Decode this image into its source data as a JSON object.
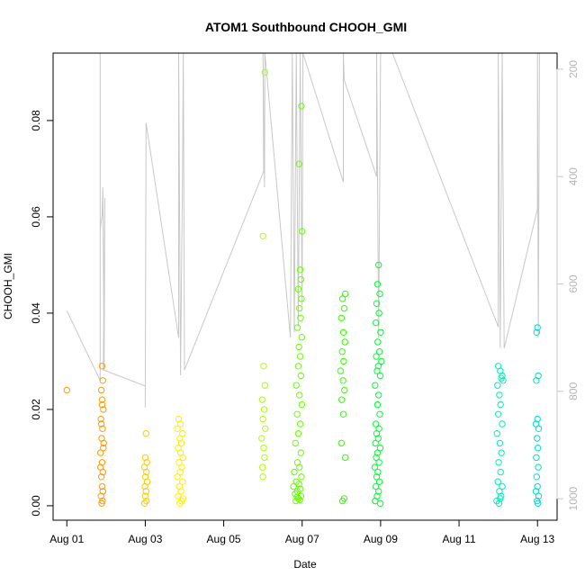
{
  "chart_data": {
    "type": "scatter",
    "title": "ATOM1 Southbound CHOOH_GMI",
    "xlabel": "Date",
    "ylabel": "CHOOH_GMI",
    "x_ticks": [
      "Aug 01",
      "Aug 03",
      "Aug 05",
      "Aug 07",
      "Aug 09",
      "Aug 11",
      "Aug 13"
    ],
    "x_tick_days": [
      1,
      3,
      5,
      7,
      9,
      11,
      13
    ],
    "xlim_days": [
      0.65,
      13.5
    ],
    "ylim": [
      -0.003,
      0.094
    ],
    "y_ticks": [
      0.0,
      0.02,
      0.04,
      0.06,
      0.08
    ],
    "y_tick_labels": [
      "0.00",
      "0.02",
      "0.04",
      "0.06",
      "0.08"
    ],
    "secondary_axis": {
      "label": "",
      "reversed": true,
      "ticks": [
        200,
        400,
        600,
        800,
        1000
      ],
      "ylim": [
        1040,
        170
      ],
      "color": "#c8c8c8"
    },
    "series": [
      {
        "color": "#ff9900",
        "points": [
          [
            1.0,
            0.024
          ],
          [
            1.9,
            0.029
          ],
          [
            1.92,
            0.026
          ],
          [
            1.88,
            0.024
          ],
          [
            1.9,
            0.022
          ],
          [
            1.93,
            0.02
          ],
          [
            1.87,
            0.018
          ],
          [
            1.91,
            0.016
          ],
          [
            1.89,
            0.014
          ],
          [
            1.93,
            0.012
          ],
          [
            1.86,
            0.011
          ],
          [
            1.9,
            0.009
          ],
          [
            1.92,
            0.007
          ],
          [
            1.88,
            0.006
          ],
          [
            1.9,
            0.004
          ],
          [
            1.87,
            0.002
          ],
          [
            1.91,
            0.001
          ],
          [
            1.89,
            0.0005
          ],
          [
            1.92,
            0.003
          ],
          [
            1.86,
            0.008
          ],
          [
            1.94,
            0.013
          ],
          [
            1.88,
            0.017
          ],
          [
            1.9,
            0.021
          ]
        ]
      },
      {
        "color": "#ffcc00",
        "points": [
          [
            3.02,
            0.015
          ],
          [
            3.0,
            0.01
          ],
          [
            3.04,
            0.009
          ],
          [
            2.98,
            0.008
          ],
          [
            3.03,
            0.007
          ],
          [
            3.0,
            0.006
          ],
          [
            3.05,
            0.005
          ],
          [
            2.99,
            0.004
          ],
          [
            3.02,
            0.003
          ],
          [
            3.0,
            0.002
          ],
          [
            3.03,
            0.001
          ],
          [
            2.98,
            0.0005
          ]
        ]
      },
      {
        "color": "#ffee00",
        "points": [
          [
            3.85,
            0.018
          ],
          [
            3.9,
            0.017
          ],
          [
            3.82,
            0.016
          ],
          [
            3.95,
            0.015
          ],
          [
            3.88,
            0.014
          ],
          [
            3.92,
            0.013
          ],
          [
            3.84,
            0.012
          ],
          [
            3.9,
            0.011
          ],
          [
            3.96,
            0.01
          ],
          [
            3.86,
            0.009
          ],
          [
            3.93,
            0.008
          ],
          [
            3.89,
            0.007
          ],
          [
            3.82,
            0.006
          ],
          [
            3.95,
            0.005
          ],
          [
            3.87,
            0.004
          ],
          [
            3.91,
            0.003
          ],
          [
            3.84,
            0.002
          ],
          [
            3.93,
            0.001
          ],
          [
            3.88,
            0.0005
          ],
          [
            3.96,
            0.0015
          ]
        ]
      },
      {
        "color": "#aaff00",
        "points": [
          [
            6.05,
            0.09
          ],
          [
            6.0,
            0.056
          ],
          [
            6.02,
            0.029
          ],
          [
            6.05,
            0.025
          ],
          [
            5.98,
            0.022
          ],
          [
            6.03,
            0.02
          ],
          [
            6.0,
            0.018
          ],
          [
            6.06,
            0.016
          ],
          [
            5.97,
            0.014
          ],
          [
            6.02,
            0.012
          ],
          [
            6.04,
            0.01
          ],
          [
            5.99,
            0.008
          ],
          [
            6.0,
            0.006
          ]
        ]
      },
      {
        "color": "#66ff00",
        "points": [
          [
            6.98,
            0.083
          ],
          [
            6.92,
            0.071
          ],
          [
            7.0,
            0.057
          ],
          [
            6.95,
            0.049
          ],
          [
            6.97,
            0.047
          ],
          [
            6.9,
            0.045
          ],
          [
            6.98,
            0.043
          ],
          [
            6.93,
            0.041
          ],
          [
            6.96,
            0.039
          ],
          [
            6.88,
            0.037
          ],
          [
            6.99,
            0.035
          ],
          [
            6.92,
            0.033
          ],
          [
            6.95,
            0.031
          ],
          [
            6.9,
            0.029
          ],
          [
            6.97,
            0.027
          ],
          [
            6.85,
            0.025
          ],
          [
            6.93,
            0.023
          ],
          [
            6.99,
            0.021
          ],
          [
            6.87,
            0.019
          ],
          [
            6.95,
            0.017
          ],
          [
            6.9,
            0.015
          ],
          [
            6.83,
            0.013
          ],
          [
            6.97,
            0.011
          ],
          [
            6.88,
            0.009
          ],
          [
            6.93,
            0.008
          ],
          [
            6.8,
            0.007
          ],
          [
            6.98,
            0.006
          ],
          [
            6.85,
            0.005
          ],
          [
            6.92,
            0.0045
          ],
          [
            6.78,
            0.004
          ],
          [
            6.95,
            0.0035
          ],
          [
            6.88,
            0.003
          ],
          [
            6.82,
            0.0025
          ],
          [
            6.97,
            0.002
          ],
          [
            6.9,
            0.0015
          ],
          [
            6.84,
            0.001
          ],
          [
            6.94,
            0.0012
          ],
          [
            6.87,
            0.0018
          ]
        ]
      },
      {
        "color": "#33ff00",
        "points": [
          [
            8.1,
            0.044
          ],
          [
            8.03,
            0.043
          ],
          [
            8.07,
            0.041
          ],
          [
            8.0,
            0.039
          ],
          [
            8.05,
            0.036
          ],
          [
            8.09,
            0.034
          ],
          [
            8.02,
            0.032
          ],
          [
            8.06,
            0.03
          ],
          [
            7.98,
            0.028
          ],
          [
            8.04,
            0.026
          ],
          [
            8.08,
            0.024
          ],
          [
            8.01,
            0.022
          ],
          [
            8.05,
            0.019
          ],
          [
            8.0,
            0.013
          ],
          [
            8.1,
            0.01
          ],
          [
            8.03,
            0.001
          ],
          [
            8.07,
            0.0015
          ]
        ]
      },
      {
        "color": "#00ff33",
        "points": [
          [
            8.95,
            0.05
          ],
          [
            8.92,
            0.046
          ],
          [
            8.98,
            0.044
          ],
          [
            8.9,
            0.042
          ],
          [
            8.96,
            0.04
          ],
          [
            8.88,
            0.038
          ],
          [
            9.0,
            0.036
          ],
          [
            8.93,
            0.034
          ],
          [
            8.97,
            0.032
          ],
          [
            8.89,
            0.031
          ],
          [
            9.02,
            0.03
          ],
          [
            8.94,
            0.029
          ],
          [
            8.91,
            0.028
          ],
          [
            8.99,
            0.027
          ],
          [
            8.86,
            0.025
          ],
          [
            8.95,
            0.023
          ],
          [
            8.92,
            0.021
          ],
          [
            8.98,
            0.019
          ],
          [
            8.88,
            0.017
          ],
          [
            8.96,
            0.016
          ],
          [
            8.9,
            0.015
          ],
          [
            8.94,
            0.014
          ],
          [
            8.87,
            0.013
          ],
          [
            8.99,
            0.012
          ],
          [
            8.92,
            0.011
          ],
          [
            8.89,
            0.01
          ],
          [
            8.96,
            0.009
          ],
          [
            8.85,
            0.008
          ],
          [
            8.93,
            0.007
          ],
          [
            8.9,
            0.006
          ],
          [
            8.97,
            0.005
          ],
          [
            8.88,
            0.004
          ],
          [
            8.95,
            0.003
          ],
          [
            8.91,
            0.002
          ],
          [
            8.86,
            0.001
          ],
          [
            8.99,
            0.0005
          ]
        ]
      },
      {
        "color": "#00eebb",
        "points": [
          [
            12.0,
            0.029
          ],
          [
            12.05,
            0.028
          ],
          [
            12.1,
            0.027
          ],
          [
            12.08,
            0.0265
          ],
          [
            12.12,
            0.026
          ],
          [
            11.98,
            0.025
          ],
          [
            12.03,
            0.023
          ],
          [
            12.06,
            0.021
          ],
          [
            12.0,
            0.019
          ],
          [
            12.1,
            0.017
          ],
          [
            11.97,
            0.015
          ],
          [
            12.04,
            0.013
          ],
          [
            12.08,
            0.011
          ],
          [
            12.01,
            0.009
          ],
          [
            12.06,
            0.007
          ],
          [
            11.99,
            0.005
          ],
          [
            12.1,
            0.004
          ],
          [
            12.03,
            0.003
          ],
          [
            12.07,
            0.002
          ],
          [
            11.96,
            0.001
          ],
          [
            12.02,
            0.0005
          ],
          [
            12.05,
            0.0015
          ]
        ]
      },
      {
        "color": "#00ddcc",
        "points": [
          [
            13.0,
            0.037
          ],
          [
            12.98,
            0.036
          ],
          [
            13.02,
            0.027
          ],
          [
            12.97,
            0.026
          ],
          [
            13.0,
            0.018
          ],
          [
            12.96,
            0.017
          ],
          [
            13.03,
            0.016
          ],
          [
            12.99,
            0.014
          ],
          [
            13.01,
            0.012
          ],
          [
            12.97,
            0.01
          ],
          [
            13.02,
            0.008
          ],
          [
            12.98,
            0.006
          ],
          [
            13.0,
            0.004
          ],
          [
            12.96,
            0.003
          ],
          [
            13.03,
            0.002
          ],
          [
            12.99,
            0.001
          ],
          [
            13.01,
            0.0005
          ]
        ]
      }
    ],
    "secondary_line": {
      "color": "#c8c8c8",
      "points": [
        [
          1.0,
          650
        ],
        [
          1.85,
          780
        ],
        [
          1.85,
          170
        ],
        [
          1.85,
          500
        ],
        [
          1.9,
          470
        ],
        [
          1.92,
          420
        ],
        [
          1.95,
          760
        ],
        [
          1.97,
          440
        ],
        [
          1.93,
          760
        ],
        [
          3.0,
          790
        ],
        [
          3.0,
          830
        ],
        [
          3.02,
          300
        ],
        [
          3.85,
          700
        ],
        [
          3.85,
          170
        ],
        [
          3.9,
          770
        ],
        [
          3.95,
          400
        ],
        [
          3.97,
          170
        ],
        [
          4.0,
          750
        ],
        [
          4.0,
          760
        ],
        [
          6.02,
          390
        ],
        [
          6.0,
          170
        ],
        [
          6.04,
          420
        ],
        [
          6.05,
          170
        ],
        [
          6.7,
          700
        ],
        [
          6.75,
          170
        ],
        [
          6.8,
          690
        ],
        [
          6.85,
          170
        ],
        [
          6.9,
          680
        ],
        [
          6.95,
          170
        ],
        [
          7.0,
          640
        ],
        [
          7.02,
          170
        ],
        [
          8.05,
          410
        ],
        [
          8.05,
          170
        ],
        [
          8.07,
          220
        ],
        [
          8.9,
          400
        ],
        [
          8.9,
          170
        ],
        [
          8.95,
          700
        ],
        [
          9.0,
          170
        ],
        [
          9.3,
          170
        ],
        [
          12.0,
          680
        ],
        [
          12.0,
          170
        ],
        [
          12.05,
          720
        ],
        [
          12.1,
          170
        ],
        [
          12.15,
          720
        ],
        [
          13.0,
          460
        ],
        [
          13.0,
          170
        ],
        [
          13.02,
          700
        ],
        [
          13.05,
          170
        ]
      ]
    }
  }
}
